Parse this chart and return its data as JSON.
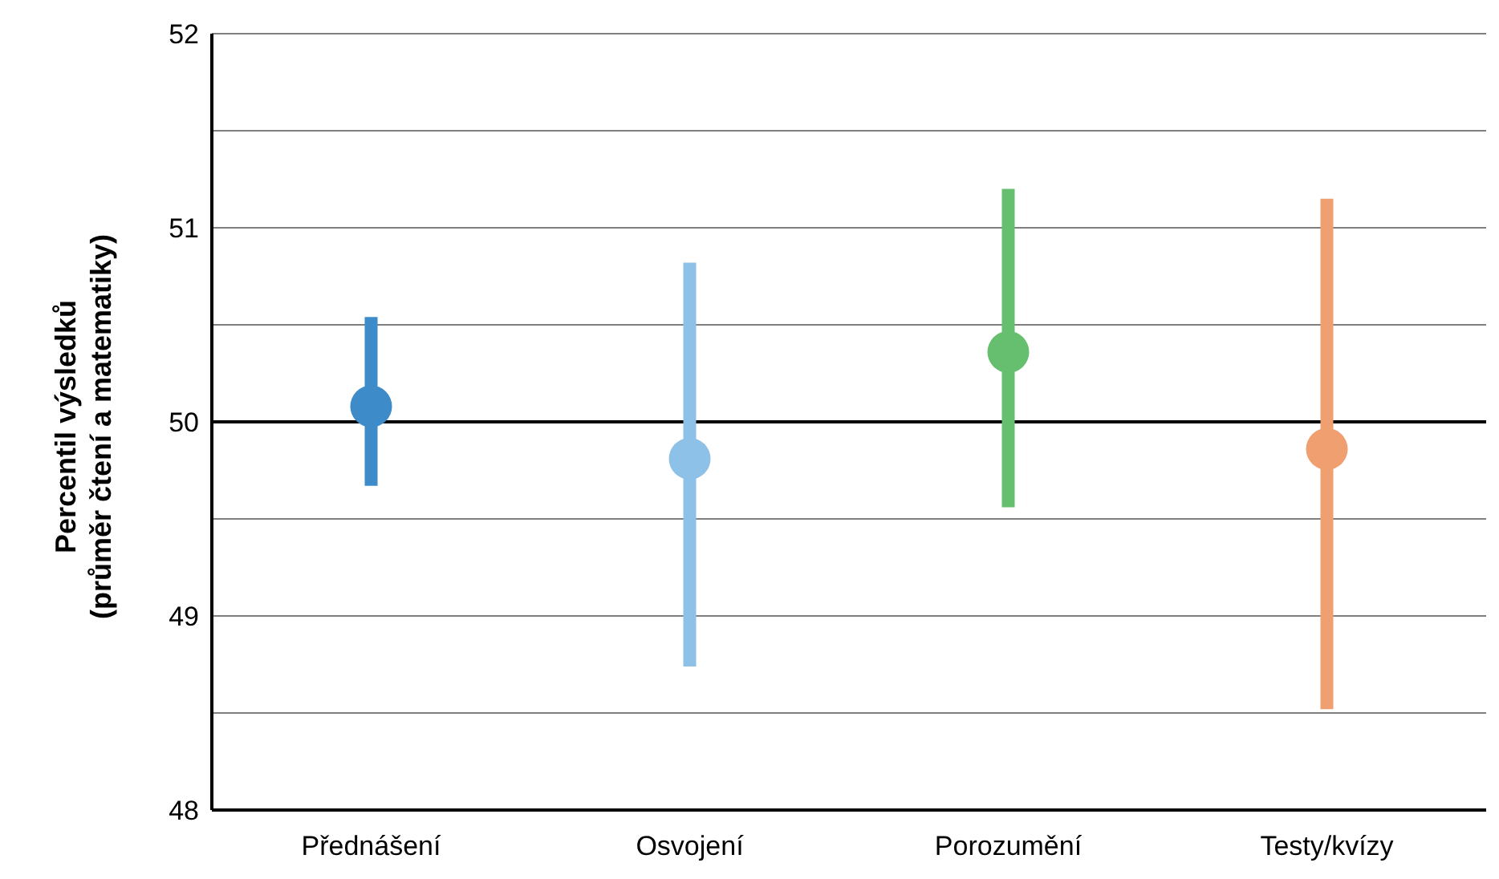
{
  "chart_data": {
    "type": "scatter",
    "ylabel": "Percentil výsledků\n(průměr čtení a matematiky)",
    "categories": [
      "Přednášení",
      "Osvojení",
      "Porozumění",
      "Testy/kvízy"
    ],
    "values": [
      50.08,
      49.81,
      50.36,
      49.86
    ],
    "colors": [
      "#3d8bc8",
      "#8dc1e8",
      "#65bf6f",
      "#f0a070"
    ],
    "errors": [
      [
        49.67,
        50.54
      ],
      [
        48.74,
        50.82
      ],
      [
        49.56,
        51.2
      ],
      [
        48.52,
        51.15
      ]
    ],
    "marker": "circle",
    "ylim": [
      48,
      52
    ],
    "yticks": [
      48,
      {
        "value": 48.5,
        "label": null
      },
      49,
      {
        "value": 49.5,
        "label": null
      },
      50,
      {
        "value": 50.5,
        "label": null
      },
      51,
      {
        "value": 51.5,
        "label": null
      },
      52
    ],
    "ref_lines": [
      {
        "axis": "y",
        "value": 50,
        "color": "#000000"
      }
    ],
    "grid": "y",
    "legend": false
  }
}
